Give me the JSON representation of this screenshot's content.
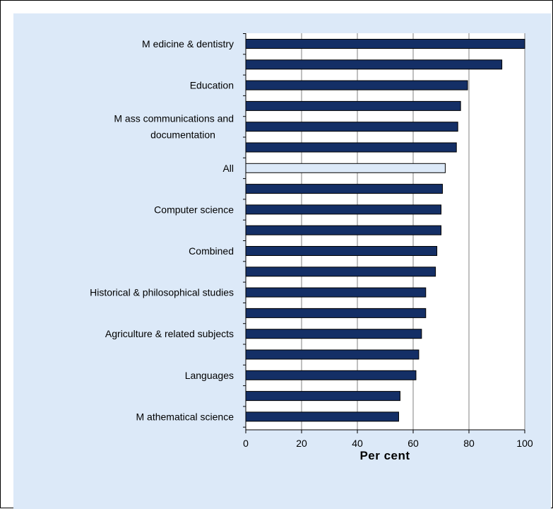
{
  "colors": {
    "panel_background": "#dce9f8",
    "plot_background": "#ffffff",
    "bar_fill": "#142f66",
    "highlight_bar_fill": "#dce9f8",
    "bar_edge": "#000000",
    "gridline": "#808080"
  },
  "chart_data": {
    "type": "bar",
    "orientation": "horizontal",
    "title": "",
    "xlabel": "Per cent",
    "ylabel": "",
    "xlim": [
      0,
      100
    ],
    "xticks": [
      0,
      20,
      40,
      60,
      80,
      100
    ],
    "xtick_labels": [
      "0",
      "20",
      "40",
      "60",
      "80",
      "100"
    ],
    "grid": "vertical gridlines at each x tick",
    "legend": "none",
    "categories": [
      "Medicine & dentistry",
      "",
      "Education",
      "",
      "M ass communications and documentation",
      "",
      "All",
      "",
      "Computer science",
      "",
      "Combined",
      "",
      "Historical & philosophical studies",
      "",
      "Agriculture & related subjects",
      "",
      "Languages",
      "",
      "M athematical science"
    ],
    "category_label_lines": [
      [
        "M edicine & dentistry"
      ],
      [],
      [
        "Education"
      ],
      [],
      [
        "M ass communications and",
        "documentation"
      ],
      [],
      [
        "All"
      ],
      [],
      [
        "Computer science"
      ],
      [],
      [
        "Combined"
      ],
      [],
      [
        "Historical & philosophical studies"
      ],
      [],
      [
        "Agriculture & related subjects"
      ],
      [],
      [
        "Languages"
      ],
      [],
      [
        "M athematical science"
      ]
    ],
    "values": [
      100,
      91.8,
      79.5,
      77,
      76,
      75.5,
      71.5,
      70.5,
      70,
      70,
      68.5,
      68,
      64.5,
      64.5,
      63,
      62,
      61,
      55.3,
      54.8
    ],
    "highlight_index": 6
  }
}
